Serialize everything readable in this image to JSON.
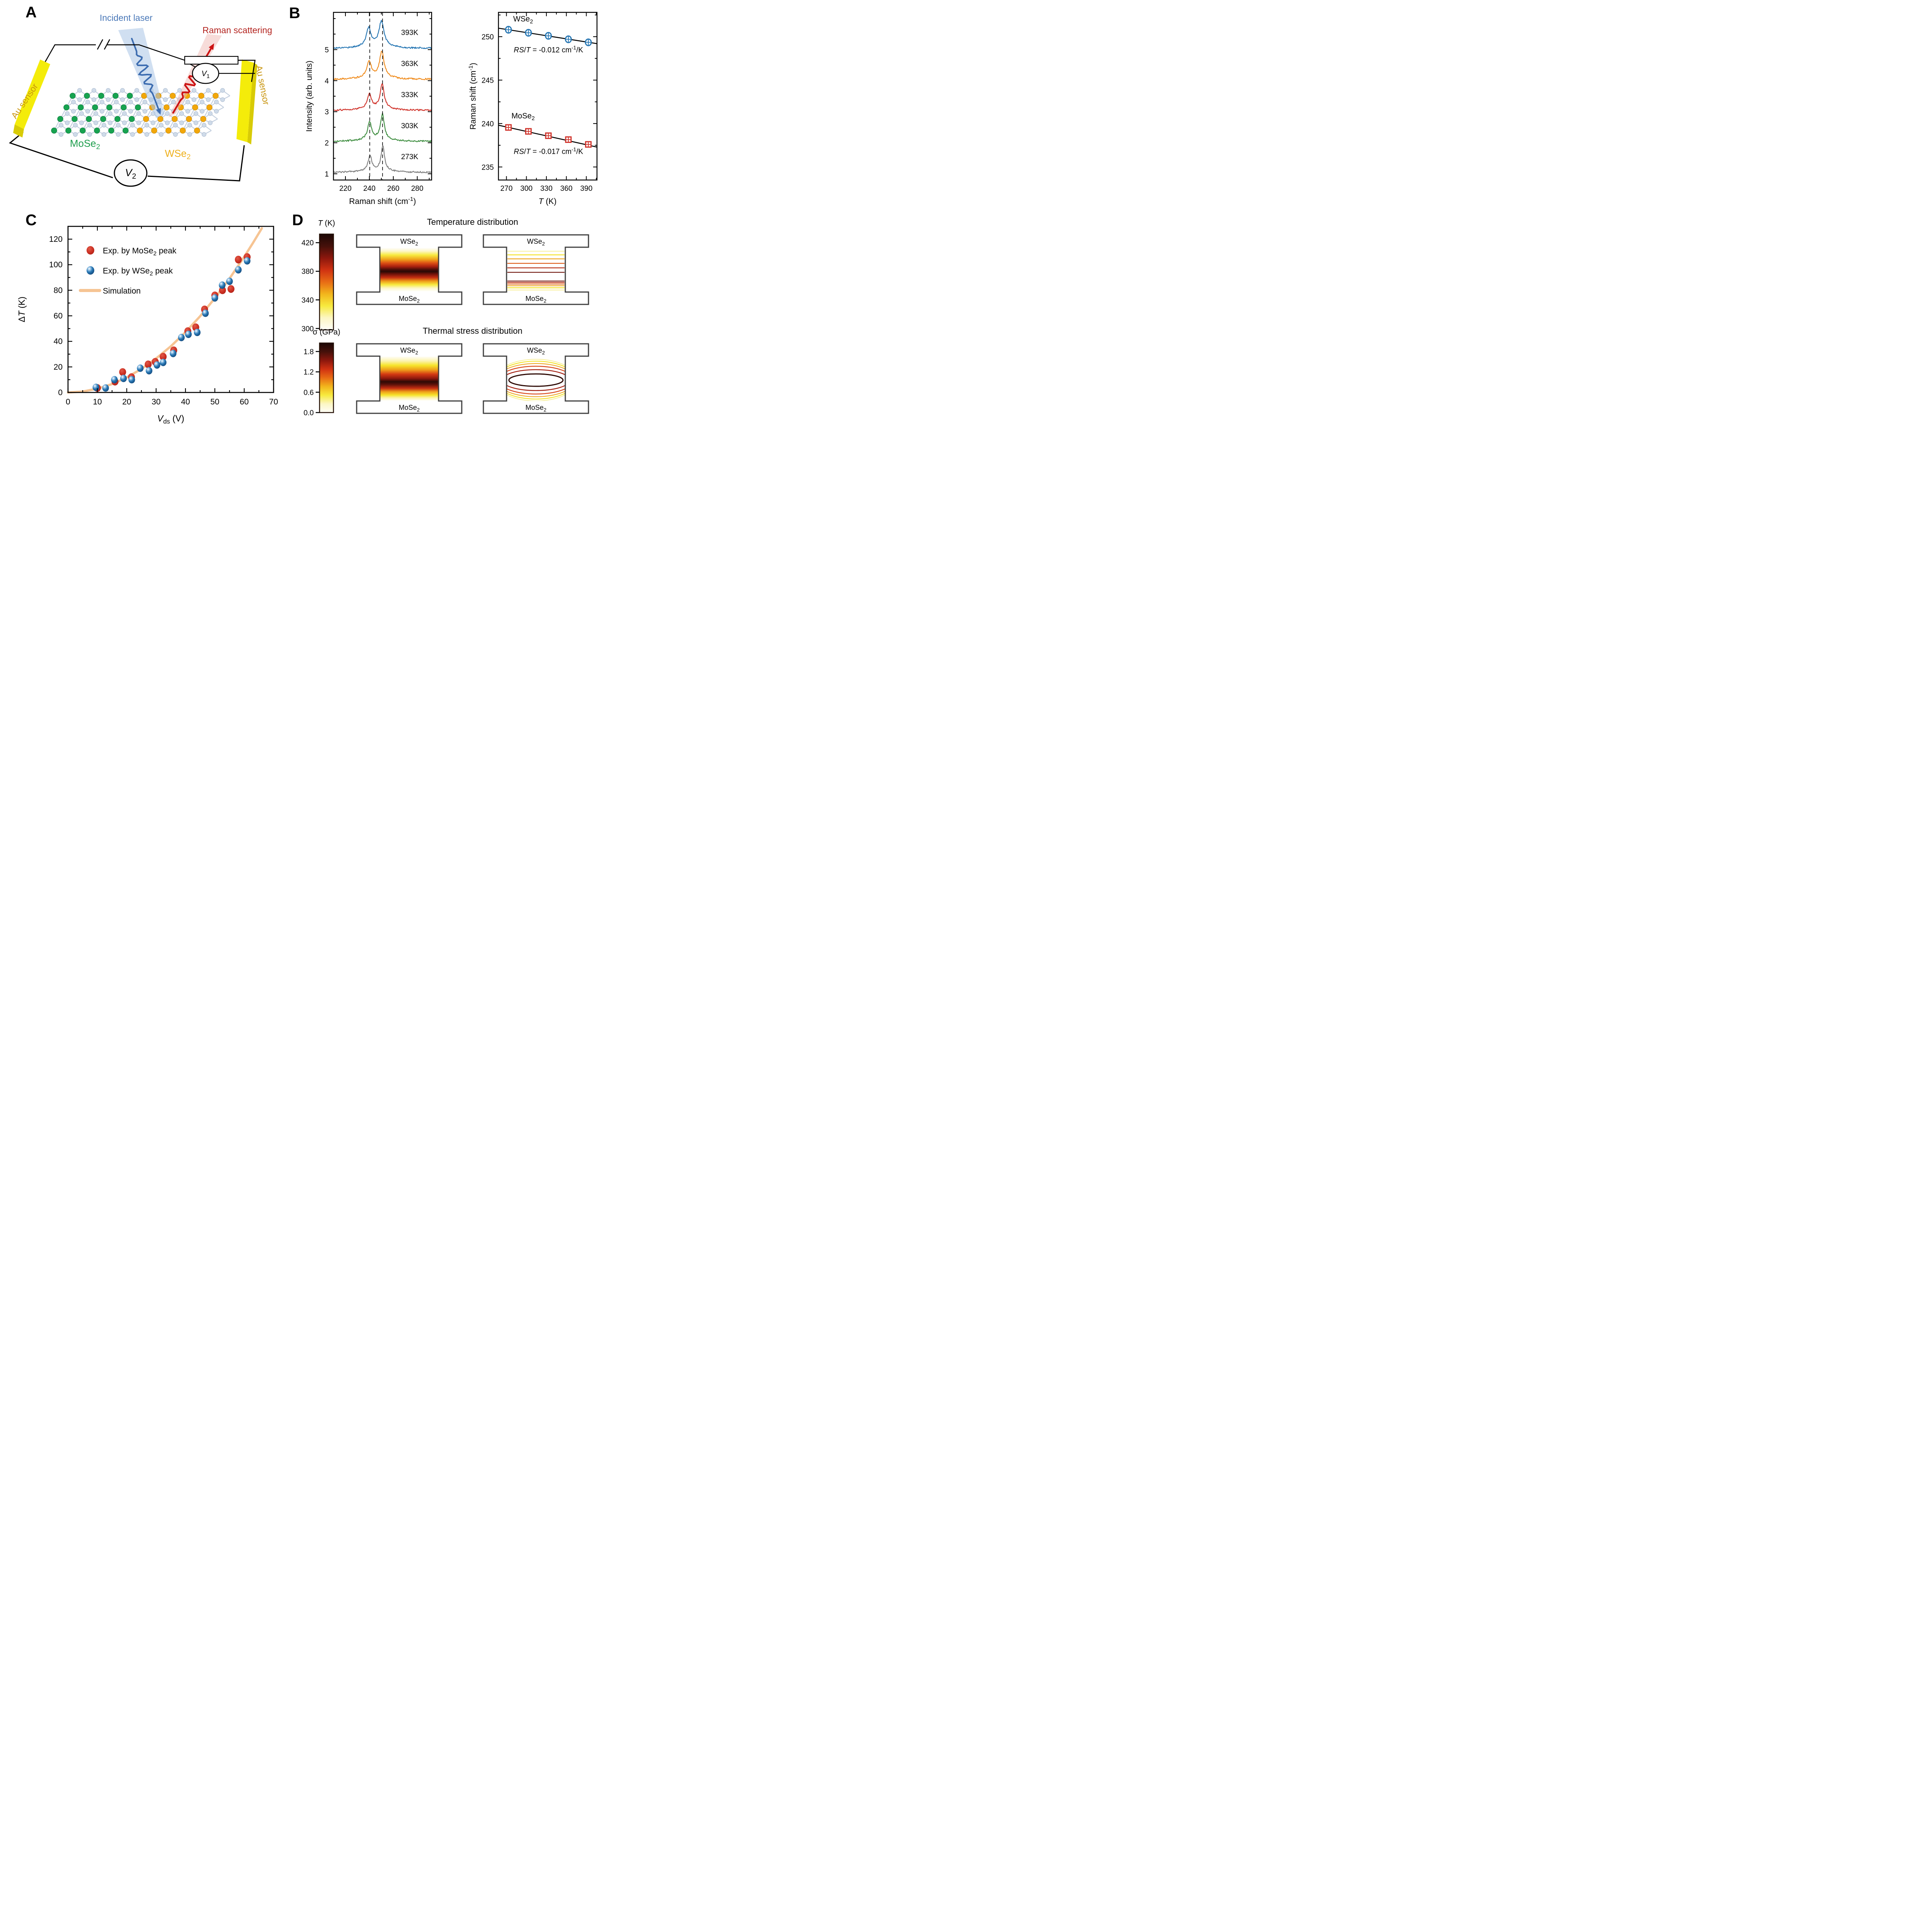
{
  "panels": {
    "a": {
      "letter": "A",
      "incident_laser": "Incident laser",
      "raman_scattering": "Raman scattering",
      "au_sensor_left": "Au sensor",
      "au_sensor_right": "Au sensor",
      "mose2_label": "MoSe_{2}",
      "wse2_label": "WSe_{2}",
      "v1_label": "*V*_{1}",
      "v2_label": "*V*_{2}",
      "colors": {
        "laser_beam": "#a9c4e6",
        "laser_line": "#3c6cb0",
        "raman_beam": "#f0b9b4",
        "raman_line": "#cc1414",
        "electrode": "#f4ec0a",
        "electrode_side": "#d8cb06",
        "au_text": "#c8940d",
        "mo_atom": "#17a350",
        "w_atom": "#f2a70a",
        "se_atom": "#cfdbe9",
        "bond": "#c2cede",
        "mose2_text": "#1f9e4e",
        "wse2_text": "#eeb01c",
        "incident_text": "#4a78b8",
        "raman_text": "#b3241f"
      }
    },
    "b": {
      "letter": "B"
    },
    "c": {
      "letter": "C"
    },
    "d": {
      "letter": "D"
    }
  },
  "chart_data": [
    {
      "id": "raman_spectra_vs_temperature",
      "type": "line",
      "panel": "B-left",
      "xlabel": "Raman shift (cm^{-1})",
      "ylabel": "Intensity (arb. units)",
      "xlim": [
        210,
        292
      ],
      "ylim": [
        0.8,
        6.2
      ],
      "xticks": [
        220,
        240,
        260,
        280
      ],
      "xminor_step": 10,
      "yticks": [
        1,
        2,
        3,
        4,
        5
      ],
      "yminor_step": 0.5,
      "dashed_guides_x": [
        240.3,
        251.0
      ],
      "series": [
        {
          "label": "393K",
          "color": "#2777b4",
          "baseline": 5.05,
          "peaks": [
            {
              "center": 239.4,
              "height": 0.58,
              "width": 2.3
            },
            {
              "center": 250.1,
              "height": 0.8,
              "width": 2.5
            }
          ]
        },
        {
          "label": "363K",
          "color": "#f08c1e",
          "baseline": 4.05,
          "peaks": [
            {
              "center": 239.7,
              "height": 0.52,
              "width": 2.2
            },
            {
              "center": 250.4,
              "height": 0.82,
              "width": 2.3
            }
          ]
        },
        {
          "label": "333K",
          "color": "#d0342c",
          "baseline": 3.05,
          "peaks": [
            {
              "center": 240.0,
              "height": 0.45,
              "width": 2.0
            },
            {
              "center": 250.7,
              "height": 0.78,
              "width": 2.0
            }
          ]
        },
        {
          "label": "303K",
          "color": "#3f8e41",
          "baseline": 2.05,
          "peaks": [
            {
              "center": 240.2,
              "height": 0.55,
              "width": 2.0
            },
            {
              "center": 250.9,
              "height": 0.8,
              "width": 1.9
            }
          ]
        },
        {
          "label": "273K",
          "color": "#808080",
          "baseline": 1.05,
          "peaks": [
            {
              "center": 240.5,
              "height": 0.48,
              "width": 1.8
            },
            {
              "center": 251.2,
              "height": 0.78,
              "width": 1.7
            }
          ]
        }
      ]
    },
    {
      "id": "raman_shift_vs_T",
      "type": "scatter",
      "panel": "B-right",
      "xlabel": "*T* (K)",
      "ylabel": "Raman shift (cm^{-1})",
      "xlim": [
        258,
        406
      ],
      "ylim": [
        233.5,
        252.8
      ],
      "xticks": [
        270,
        300,
        330,
        360,
        390
      ],
      "xminor_step": 15,
      "yticks": [
        235,
        240,
        245,
        250
      ],
      "yminor_step": 2.5,
      "series": [
        {
          "label": "WSe_{2}",
          "marker": "circle-plus",
          "color": "#2777b4",
          "x": [
            273,
            303,
            333,
            363,
            393
          ],
          "y": [
            250.8,
            250.45,
            250.1,
            249.7,
            249.35
          ],
          "slope_annotation": "*RS*/*T* = -0.012 cm^{-1}/K",
          "fit": {
            "x": [
              258,
              406
            ],
            "y": [
              250.98,
              249.2
            ]
          }
        },
        {
          "label": "MoSe_{2}",
          "marker": "square-plus",
          "color": "#d0342c",
          "x": [
            273,
            303,
            333,
            363,
            393
          ],
          "y": [
            239.55,
            239.1,
            238.6,
            238.15,
            237.6
          ],
          "slope_annotation": "*RS*/*T* = -0.017 cm^{-1}/K",
          "fit": {
            "x": [
              258,
              406
            ],
            "y": [
              239.81,
              237.29
            ]
          }
        }
      ]
    },
    {
      "id": "deltaT_vs_Vds",
      "type": "scatter",
      "panel": "C",
      "xlabel": "*V*_{ds} (V)",
      "ylabel": "Δ*T* (K)",
      "xlim": [
        0,
        70
      ],
      "ylim": [
        0,
        130
      ],
      "xticks": [
        0,
        10,
        20,
        30,
        40,
        50,
        60,
        70
      ],
      "xminor_step": 5,
      "yticks": [
        0,
        20,
        40,
        60,
        80,
        100,
        120
      ],
      "yminor_step": 10,
      "legend": [
        {
          "label": "Exp. by MoSe_{2} peak",
          "marker": "circle",
          "color": "#d0342c"
        },
        {
          "label": "Exp. by WSe_{2} peak",
          "marker": "sphere",
          "color": "#2777b4"
        },
        {
          "label": "Simulation",
          "marker": "line",
          "color": "#f6c493"
        }
      ],
      "series": [
        {
          "label": "Exp. by MoSe_{2} peak",
          "color": "#d0342c",
          "points": [
            [
              10,
              3.5
            ],
            [
              16,
              8.5
            ],
            [
              18.6,
              16
            ],
            [
              21.6,
              12
            ],
            [
              27.3,
              22
            ],
            [
              29.7,
              24
            ],
            [
              32.4,
              28
            ],
            [
              36,
              33
            ],
            [
              40.8,
              48
            ],
            [
              43.5,
              51
            ],
            [
              46.5,
              65
            ],
            [
              50,
              76
            ],
            [
              52.6,
              80
            ],
            [
              55.5,
              81
            ],
            [
              58,
              104
            ],
            [
              61,
              106
            ]
          ]
        },
        {
          "label": "Exp. by WSe_{2} peak",
          "color": "#2777b4",
          "points": [
            [
              9.5,
              4
            ],
            [
              12.8,
              3.5
            ],
            [
              15.8,
              10
            ],
            [
              18.9,
              11
            ],
            [
              21.7,
              10
            ],
            [
              24.6,
              19
            ],
            [
              27.6,
              17
            ],
            [
              30.3,
              21.5
            ],
            [
              32.4,
              23.5
            ],
            [
              35.8,
              30.5
            ],
            [
              38.6,
              43
            ],
            [
              41,
              45.5
            ],
            [
              44,
              47
            ],
            [
              46.8,
              62
            ],
            [
              50,
              74
            ],
            [
              52.5,
              84
            ],
            [
              55,
              87
            ],
            [
              58,
              96
            ],
            [
              61,
              103
            ]
          ]
        },
        {
          "label": "Simulation",
          "color": "#f6c493",
          "curve_points": [
            [
              0,
              0
            ],
            [
              5,
              0.7
            ],
            [
              10,
              3
            ],
            [
              15,
              6.6
            ],
            [
              20,
              11.8
            ],
            [
              25,
              18.4
            ],
            [
              30,
              26.6
            ],
            [
              35,
              36.1
            ],
            [
              40,
              47.2
            ],
            [
              45,
              59.7
            ],
            [
              50,
              73.8
            ],
            [
              55,
              89.2
            ],
            [
              60,
              106.2
            ],
            [
              63,
              117.1
            ],
            [
              66,
              128.5
            ]
          ]
        }
      ]
    },
    {
      "id": "temperature_distribution",
      "type": "heatmap",
      "panel": "D-top",
      "title": "Temperature distribution",
      "colorbar": {
        "label": "*T* (K)",
        "ticks": [
          420,
          380,
          340,
          300
        ],
        "vmin": 300,
        "vmax": 430
      },
      "region_labels": {
        "top": "WSe_{2}",
        "bottom": "MoSe_{2}"
      },
      "views": [
        "smooth-gradient",
        "isotherm-contours"
      ],
      "colormap": [
        "#fffef8",
        "#fcf6c4",
        "#f7ea3e",
        "#f2b51c",
        "#e86c15",
        "#d03212",
        "#8c170d",
        "#45100a",
        "#1c0806"
      ]
    },
    {
      "id": "thermal_stress_distribution",
      "type": "heatmap",
      "panel": "D-bottom",
      "title": "Thermal stress distribution",
      "colorbar": {
        "label": "σ (GPa)",
        "ticks": [
          1.8,
          1.2,
          0.6,
          0.0
        ],
        "vmin": 0,
        "vmax": 2.0
      },
      "region_labels": {
        "top": "WSe_{2}",
        "bottom": "MoSe_{2}"
      },
      "views": [
        "smooth-gradient",
        "isostress-contours"
      ],
      "colormap": [
        "#fffef8",
        "#fcf6c4",
        "#f7ea3e",
        "#f2b51c",
        "#e86c15",
        "#d03212",
        "#8c170d",
        "#45100a",
        "#1c0806"
      ]
    }
  ]
}
